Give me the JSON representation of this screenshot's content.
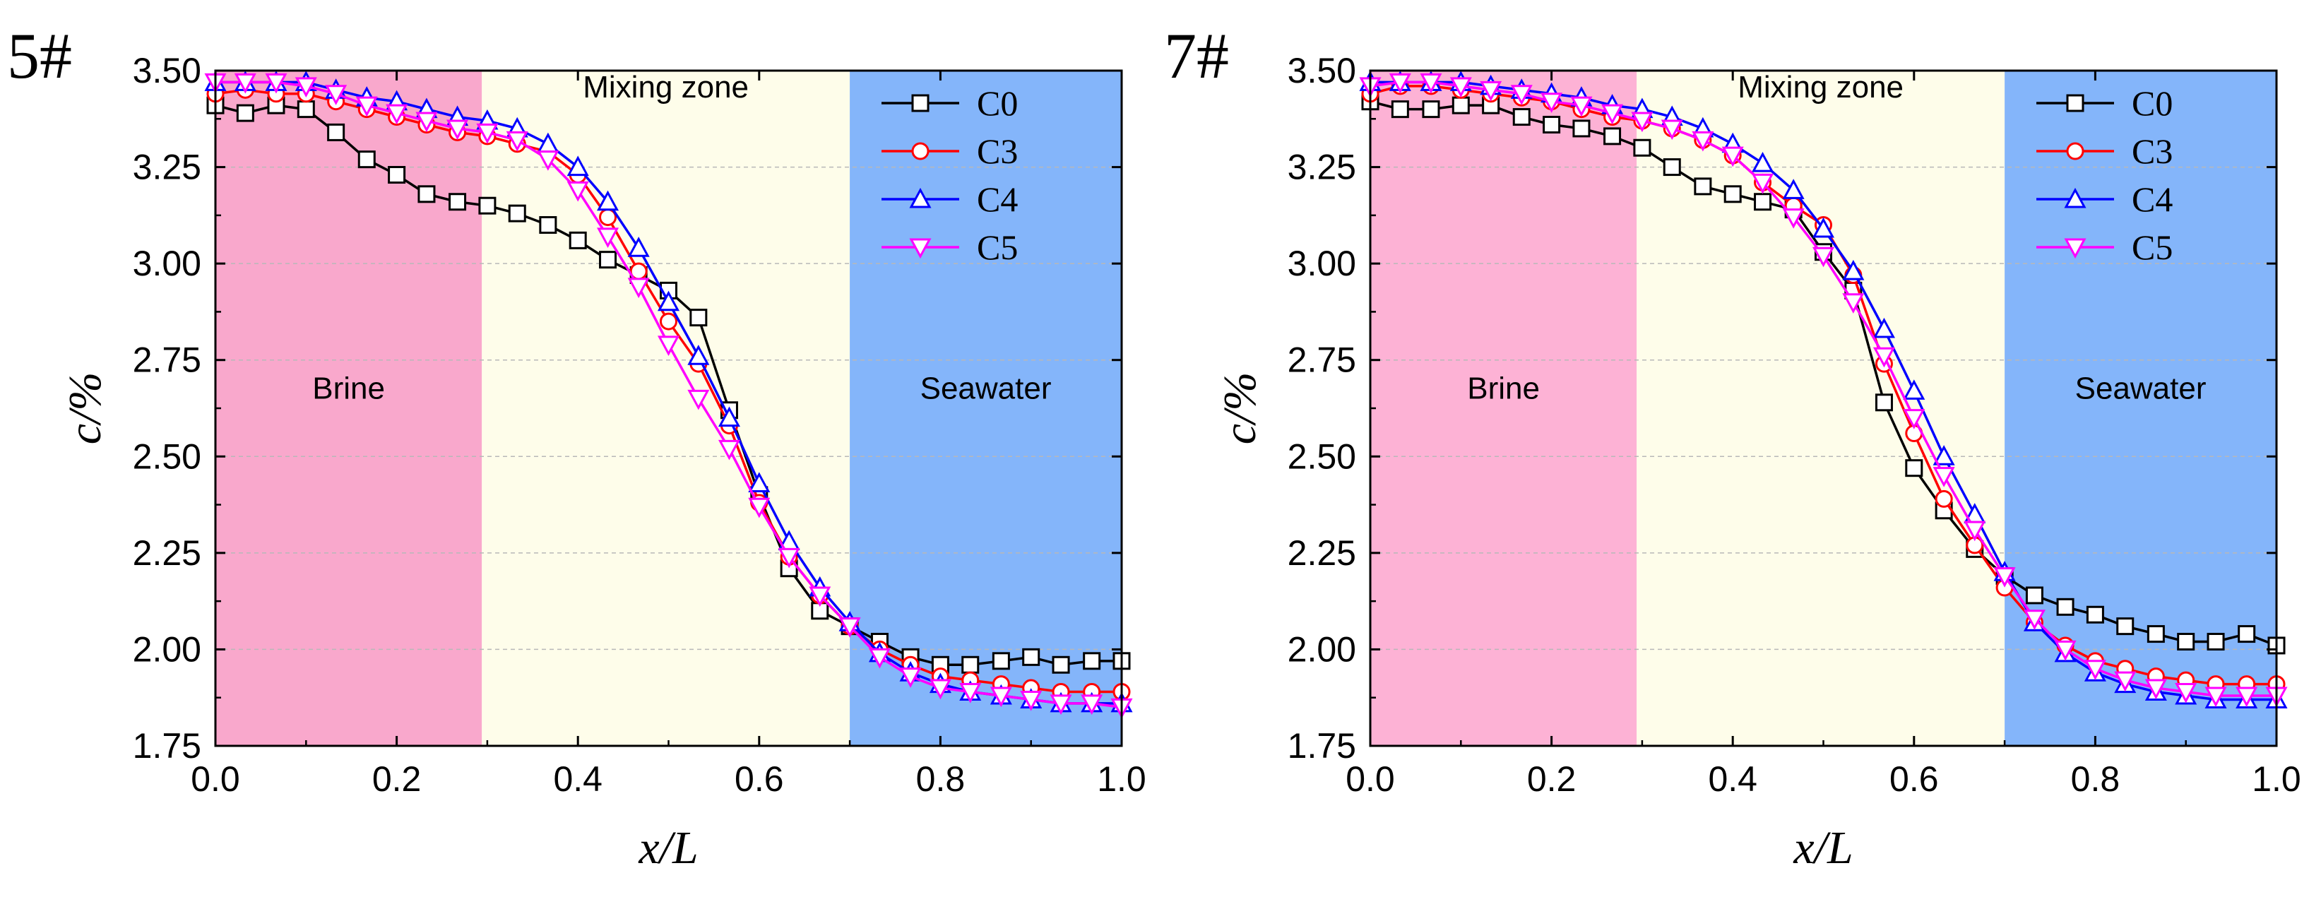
{
  "chart_data": [
    {
      "type": "line",
      "panel_label": "5#",
      "xlabel": "x/L",
      "ylabel": "c/%",
      "xlim": [
        0,
        1
      ],
      "ylim": [
        1.75,
        3.5
      ],
      "xticks": [
        "0.0",
        "0.2",
        "0.4",
        "0.6",
        "0.8",
        "1.0"
      ],
      "yticks": [
        "1.75",
        "2.00",
        "2.25",
        "2.50",
        "2.75",
        "3.00",
        "3.25",
        "3.50"
      ],
      "grid": "horizontal dashed",
      "legend_position": "top-right",
      "zones": [
        {
          "label": "Brine",
          "x_start": 0.0,
          "x_end": 0.294,
          "color": "#f9a8cc"
        },
        {
          "label": "Mixing zone",
          "x_start": 0.294,
          "x_end": 0.7,
          "color": "#fefdea"
        },
        {
          "label": "Seawater",
          "x_start": 0.7,
          "x_end": 1.0,
          "color": "#84b5fa"
        }
      ],
      "x": [
        0.0,
        0.033,
        0.067,
        0.1,
        0.133,
        0.167,
        0.2,
        0.233,
        0.267,
        0.3,
        0.333,
        0.367,
        0.4,
        0.433,
        0.467,
        0.5,
        0.533,
        0.567,
        0.6,
        0.633,
        0.667,
        0.7,
        0.733,
        0.767,
        0.8,
        0.833,
        0.867,
        0.9,
        0.933,
        0.967,
        1.0
      ],
      "series": [
        {
          "name": "C0",
          "color": "#000000",
          "marker": "square",
          "values": [
            3.41,
            3.39,
            3.41,
            3.4,
            3.34,
            3.27,
            3.23,
            3.18,
            3.16,
            3.15,
            3.13,
            3.1,
            3.06,
            3.01,
            2.97,
            2.93,
            2.86,
            2.62,
            2.4,
            2.21,
            2.1,
            2.06,
            2.02,
            1.98,
            1.96,
            1.96,
            1.97,
            1.98,
            1.96,
            1.97,
            1.97
          ]
        },
        {
          "name": "C3",
          "color": "#ff0000",
          "marker": "circle",
          "values": [
            3.44,
            3.45,
            3.44,
            3.44,
            3.42,
            3.4,
            3.38,
            3.36,
            3.34,
            3.33,
            3.31,
            3.29,
            3.23,
            3.12,
            2.98,
            2.85,
            2.74,
            2.58,
            2.38,
            2.24,
            2.14,
            2.06,
            2.0,
            1.96,
            1.93,
            1.92,
            1.91,
            1.9,
            1.89,
            1.89,
            1.89
          ]
        },
        {
          "name": "C4",
          "color": "#0000ff",
          "marker": "triangle-up",
          "values": [
            3.47,
            3.47,
            3.47,
            3.47,
            3.45,
            3.43,
            3.42,
            3.4,
            3.38,
            3.37,
            3.35,
            3.31,
            3.25,
            3.16,
            3.04,
            2.9,
            2.76,
            2.6,
            2.43,
            2.28,
            2.16,
            2.07,
            1.99,
            1.94,
            1.91,
            1.89,
            1.88,
            1.87,
            1.86,
            1.86,
            1.86
          ]
        },
        {
          "name": "C5",
          "color": "#ff00ff",
          "marker": "triangle-down",
          "values": [
            3.47,
            3.47,
            3.47,
            3.46,
            3.44,
            3.41,
            3.39,
            3.37,
            3.35,
            3.34,
            3.32,
            3.27,
            3.19,
            3.07,
            2.94,
            2.79,
            2.65,
            2.52,
            2.37,
            2.24,
            2.14,
            2.06,
            1.98,
            1.93,
            1.9,
            1.89,
            1.88,
            1.87,
            1.86,
            1.86,
            1.85
          ]
        }
      ]
    },
    {
      "type": "line",
      "panel_label": "7#",
      "xlabel": "x/L",
      "ylabel": "c/%",
      "xlim": [
        0,
        1
      ],
      "ylim": [
        1.75,
        3.5
      ],
      "xticks": [
        "0.0",
        "0.2",
        "0.4",
        "0.6",
        "0.8",
        "1.0"
      ],
      "yticks": [
        "1.75",
        "2.00",
        "2.25",
        "2.50",
        "2.75",
        "3.00",
        "3.25",
        "3.50"
      ],
      "grid": "horizontal dashed",
      "legend_position": "top-right",
      "zones": [
        {
          "label": "Brine",
          "x_start": 0.0,
          "x_end": 0.294,
          "color": "#fdb2d5"
        },
        {
          "label": "Mixing zone",
          "x_start": 0.294,
          "x_end": 0.7,
          "color": "#fefdea"
        },
        {
          "label": "Seawater",
          "x_start": 0.7,
          "x_end": 1.0,
          "color": "#84b5fa"
        }
      ],
      "x": [
        0.0,
        0.033,
        0.067,
        0.1,
        0.133,
        0.167,
        0.2,
        0.233,
        0.267,
        0.3,
        0.333,
        0.367,
        0.4,
        0.433,
        0.467,
        0.5,
        0.533,
        0.567,
        0.6,
        0.633,
        0.667,
        0.7,
        0.733,
        0.767,
        0.8,
        0.833,
        0.867,
        0.9,
        0.933,
        0.967,
        1.0
      ],
      "series": [
        {
          "name": "C0",
          "color": "#000000",
          "marker": "square",
          "values": [
            3.42,
            3.4,
            3.4,
            3.41,
            3.41,
            3.38,
            3.36,
            3.35,
            3.33,
            3.3,
            3.25,
            3.2,
            3.18,
            3.16,
            3.14,
            3.03,
            2.93,
            2.64,
            2.47,
            2.36,
            2.26,
            2.19,
            2.14,
            2.11,
            2.09,
            2.06,
            2.04,
            2.02,
            2.02,
            2.04,
            2.01
          ]
        },
        {
          "name": "C3",
          "color": "#ff0000",
          "marker": "circle",
          "values": [
            3.44,
            3.46,
            3.46,
            3.45,
            3.44,
            3.43,
            3.42,
            3.4,
            3.38,
            3.37,
            3.35,
            3.32,
            3.28,
            3.21,
            3.15,
            3.1,
            2.97,
            2.74,
            2.56,
            2.39,
            2.27,
            2.16,
            2.07,
            2.01,
            1.97,
            1.95,
            1.93,
            1.92,
            1.91,
            1.91,
            1.91
          ]
        },
        {
          "name": "C4",
          "color": "#0000ff",
          "marker": "triangle-up",
          "values": [
            3.47,
            3.47,
            3.47,
            3.47,
            3.46,
            3.45,
            3.44,
            3.43,
            3.41,
            3.4,
            3.38,
            3.35,
            3.31,
            3.26,
            3.19,
            3.09,
            2.98,
            2.83,
            2.67,
            2.5,
            2.35,
            2.2,
            2.07,
            1.99,
            1.94,
            1.91,
            1.89,
            1.88,
            1.87,
            1.87,
            1.87
          ]
        },
        {
          "name": "C5",
          "color": "#ff00ff",
          "marker": "triangle-down",
          "values": [
            3.46,
            3.47,
            3.47,
            3.46,
            3.45,
            3.44,
            3.42,
            3.41,
            3.39,
            3.37,
            3.35,
            3.32,
            3.28,
            3.21,
            3.12,
            3.02,
            2.9,
            2.76,
            2.6,
            2.45,
            2.31,
            2.19,
            2.08,
            2.0,
            1.95,
            1.92,
            1.9,
            1.89,
            1.88,
            1.88,
            1.88
          ]
        }
      ]
    }
  ]
}
